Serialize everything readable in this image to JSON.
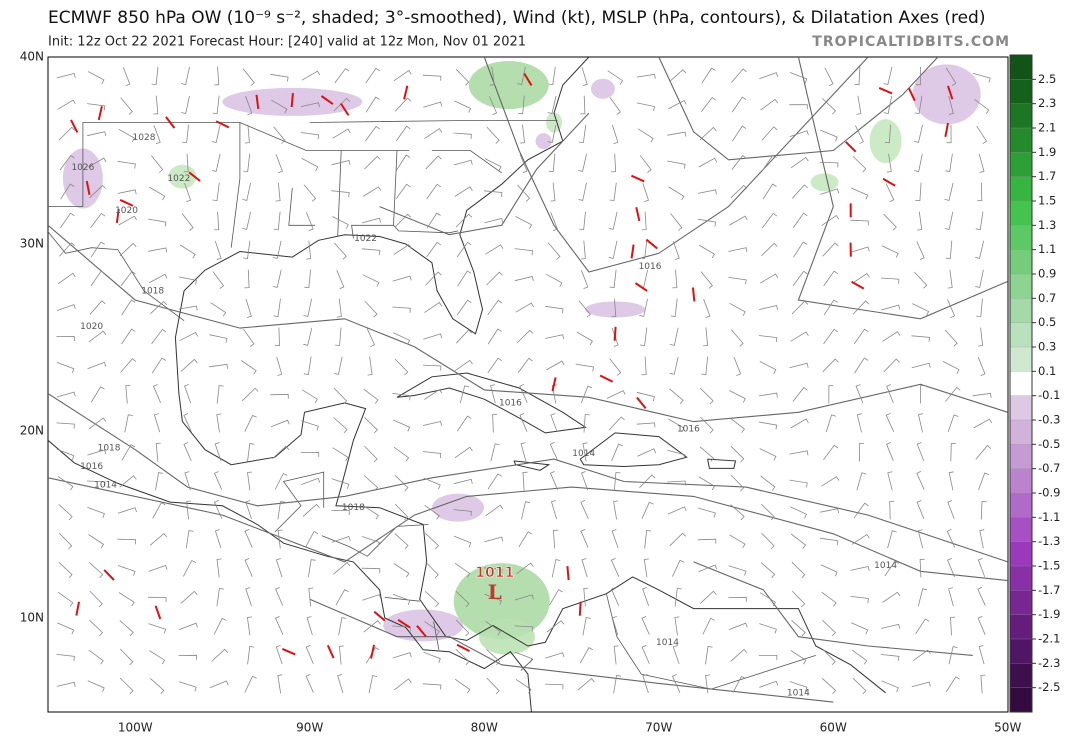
{
  "header": {
    "title": "ECMWF 850 hPa OW (10⁻⁹ s⁻², shaded; 3°-smoothed), Wind (kt), MSLP (hPa, contours), & Dilatation Axes (red)",
    "subtitle": "Init: 12z Oct 22 2021   Forecast Hour: [240]   valid at 12z Mon, Nov 01 2021",
    "site": "TROPICALTIDBITS.COM"
  },
  "map": {
    "lat_labels": [
      "40N",
      "30N",
      "20N",
      "10N"
    ],
    "lon_labels": [
      "100W",
      "90W",
      "80W",
      "70W",
      "60W",
      "50W"
    ],
    "contour_labels": [
      "1028",
      "1026",
      "1022",
      "1020",
      "1022",
      "1018",
      "1020",
      "1016",
      "1016",
      "1016",
      "1018",
      "1016",
      "1014",
      "1018",
      "1014",
      "1014",
      "1014",
      "1014"
    ],
    "low": {
      "pressure": "1011",
      "symbol": "L"
    }
  },
  "colorbar": {
    "ticks": [
      2.5,
      2.3,
      2.1,
      1.9,
      1.7,
      1.5,
      1.3,
      1.1,
      0.9,
      0.7,
      0.5,
      0.3,
      0.1,
      -0.1,
      -0.3,
      -0.5,
      -0.7,
      -0.9,
      -1.1,
      -1.3,
      -1.5,
      -1.7,
      -1.9,
      -2.1,
      -2.3,
      -2.5
    ]
  }
}
